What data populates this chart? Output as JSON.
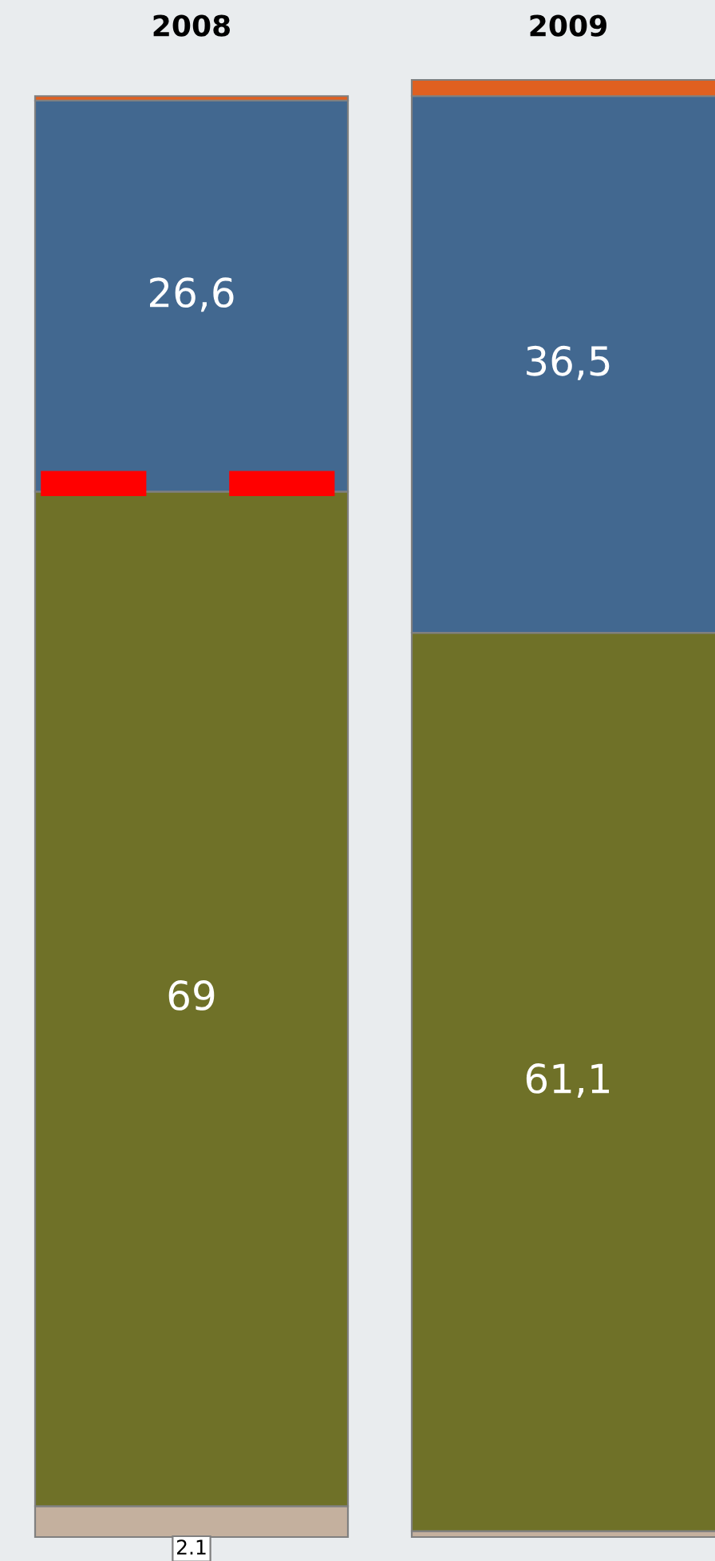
{
  "chart_data": {
    "type": "bar",
    "stacked": true,
    "categories": [
      "2008",
      "2009"
    ],
    "series": [
      {
        "color": "#c4b09e",
        "values": [
          2.1,
          0.4
        ],
        "value_labels": [
          "2.1",
          null
        ]
      },
      {
        "color": "#6f7128",
        "values": [
          69,
          61.1
        ],
        "value_labels": [
          "69",
          "61,1"
        ]
      },
      {
        "color": "#426890",
        "values": [
          26.6,
          36.5
        ],
        "value_labels": [
          "26,6",
          "36,5"
        ]
      },
      {
        "color": "#e06020",
        "values": [
          0.3,
          1.1
        ],
        "value_labels": [
          null,
          null
        ]
      }
    ],
    "legend": false
  }
}
